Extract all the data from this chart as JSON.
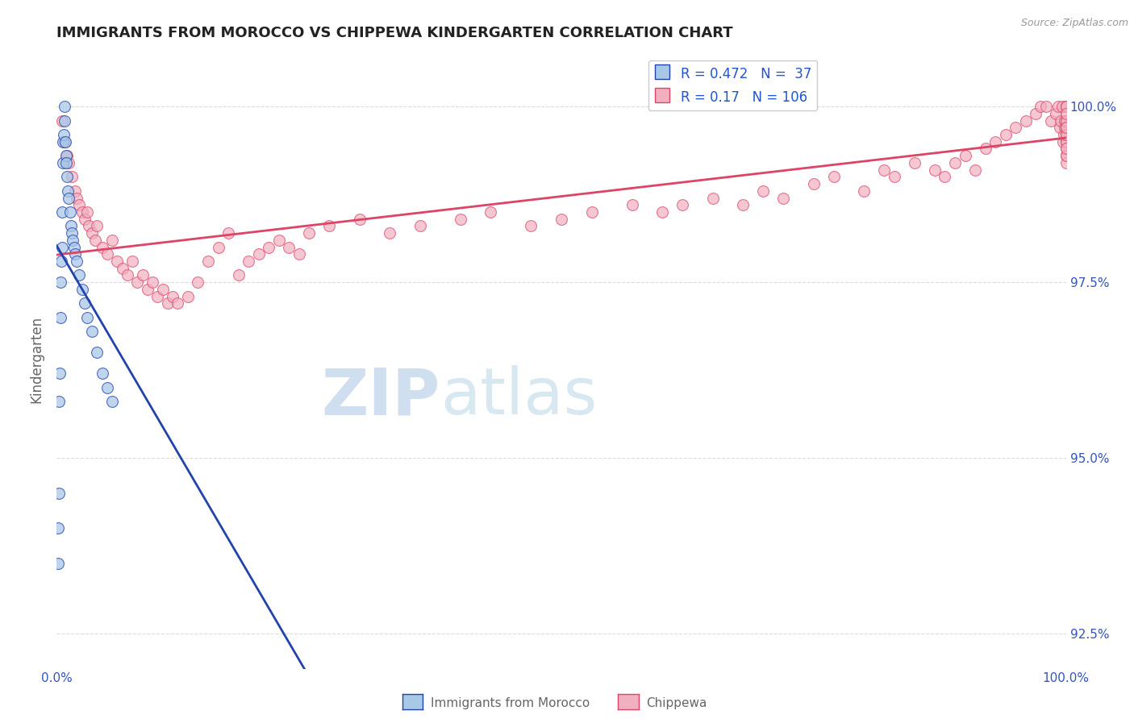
{
  "title": "IMMIGRANTS FROM MOROCCO VS CHIPPEWA KINDERGARTEN CORRELATION CHART",
  "source_text": "Source: ZipAtlas.com",
  "ylabel": "Kindergarten",
  "r_blue": 0.472,
  "n_blue": 37,
  "r_pink": 0.17,
  "n_pink": 106,
  "blue_color": "#a8c8e8",
  "pink_color": "#f0b0c0",
  "blue_line_color": "#2244aa",
  "pink_line_color": "#dd4466",
  "title_color": "#222222",
  "axis_label_color": "#666666",
  "tick_color": "#3355bb",
  "watermark_color": "#d0dff0",
  "legend_r_color": "#2255cc",
  "blue_x": [
    0.1,
    0.15,
    0.2,
    0.25,
    0.3,
    0.35,
    0.4,
    0.45,
    0.5,
    0.55,
    0.6,
    0.65,
    0.7,
    0.75,
    0.8,
    0.85,
    0.9,
    0.95,
    1.0,
    1.1,
    1.2,
    1.3,
    1.4,
    1.5,
    1.6,
    1.7,
    1.8,
    2.0,
    2.2,
    2.5,
    2.8,
    3.0,
    3.5,
    4.0,
    4.5,
    5.0,
    5.5
  ],
  "blue_y": [
    93.5,
    94.0,
    94.5,
    95.8,
    96.2,
    97.0,
    97.5,
    97.8,
    98.0,
    98.5,
    99.2,
    99.5,
    99.6,
    99.8,
    100.0,
    99.5,
    99.3,
    99.2,
    99.0,
    98.8,
    98.7,
    98.5,
    98.3,
    98.2,
    98.1,
    98.0,
    97.9,
    97.8,
    97.6,
    97.4,
    97.2,
    97.0,
    96.8,
    96.5,
    96.2,
    96.0,
    95.8
  ],
  "pink_x": [
    0.5,
    0.8,
    1.0,
    1.2,
    1.5,
    1.8,
    2.0,
    2.2,
    2.5,
    2.8,
    3.0,
    3.2,
    3.5,
    3.8,
    4.0,
    4.5,
    5.0,
    5.5,
    6.0,
    6.5,
    7.0,
    7.5,
    8.0,
    8.5,
    9.0,
    9.5,
    10.0,
    10.5,
    11.0,
    11.5,
    12.0,
    13.0,
    14.0,
    15.0,
    16.0,
    17.0,
    18.0,
    19.0,
    20.0,
    21.0,
    22.0,
    23.0,
    24.0,
    25.0,
    27.0,
    30.0,
    33.0,
    36.0,
    40.0,
    43.0,
    47.0,
    50.0,
    53.0,
    57.0,
    60.0,
    62.0,
    65.0,
    68.0,
    70.0,
    72.0,
    75.0,
    77.0,
    80.0,
    82.0,
    83.0,
    85.0,
    87.0,
    88.0,
    89.0,
    90.0,
    91.0,
    92.0,
    93.0,
    94.0,
    95.0,
    96.0,
    97.0,
    97.5,
    98.0,
    98.5,
    99.0,
    99.2,
    99.4,
    99.5,
    99.6,
    99.7,
    99.8,
    99.9,
    99.9,
    100.0,
    100.0,
    100.0,
    100.0,
    100.0,
    100.0,
    100.0,
    100.0,
    100.0,
    100.0,
    100.0,
    100.0,
    100.0,
    100.0,
    100.0,
    100.0,
    100.0
  ],
  "pink_y": [
    99.8,
    99.5,
    99.3,
    99.2,
    99.0,
    98.8,
    98.7,
    98.6,
    98.5,
    98.4,
    98.5,
    98.3,
    98.2,
    98.1,
    98.3,
    98.0,
    97.9,
    98.1,
    97.8,
    97.7,
    97.6,
    97.8,
    97.5,
    97.6,
    97.4,
    97.5,
    97.3,
    97.4,
    97.2,
    97.3,
    97.2,
    97.3,
    97.5,
    97.8,
    98.0,
    98.2,
    97.6,
    97.8,
    97.9,
    98.0,
    98.1,
    98.0,
    97.9,
    98.2,
    98.3,
    98.4,
    98.2,
    98.3,
    98.4,
    98.5,
    98.3,
    98.4,
    98.5,
    98.6,
    98.5,
    98.6,
    98.7,
    98.6,
    98.8,
    98.7,
    98.9,
    99.0,
    98.8,
    99.1,
    99.0,
    99.2,
    99.1,
    99.0,
    99.2,
    99.3,
    99.1,
    99.4,
    99.5,
    99.6,
    99.7,
    99.8,
    99.9,
    100.0,
    100.0,
    99.8,
    99.9,
    100.0,
    99.7,
    99.8,
    100.0,
    99.5,
    99.6,
    99.7,
    99.8,
    100.0,
    99.5,
    99.3,
    99.8,
    99.6,
    99.4,
    99.7,
    100.0,
    99.2,
    99.5,
    99.8,
    100.0,
    99.3,
    99.6,
    99.9,
    99.4,
    99.7
  ],
  "xmin": 0.0,
  "xmax": 100.0,
  "ymin": 92.0,
  "ymax": 100.8,
  "yticks": [
    92.5,
    95.0,
    97.5,
    100.0
  ],
  "grid_color": "#cccccc",
  "bg_color": "#ffffff",
  "watermark_text": "ZIPatlas"
}
